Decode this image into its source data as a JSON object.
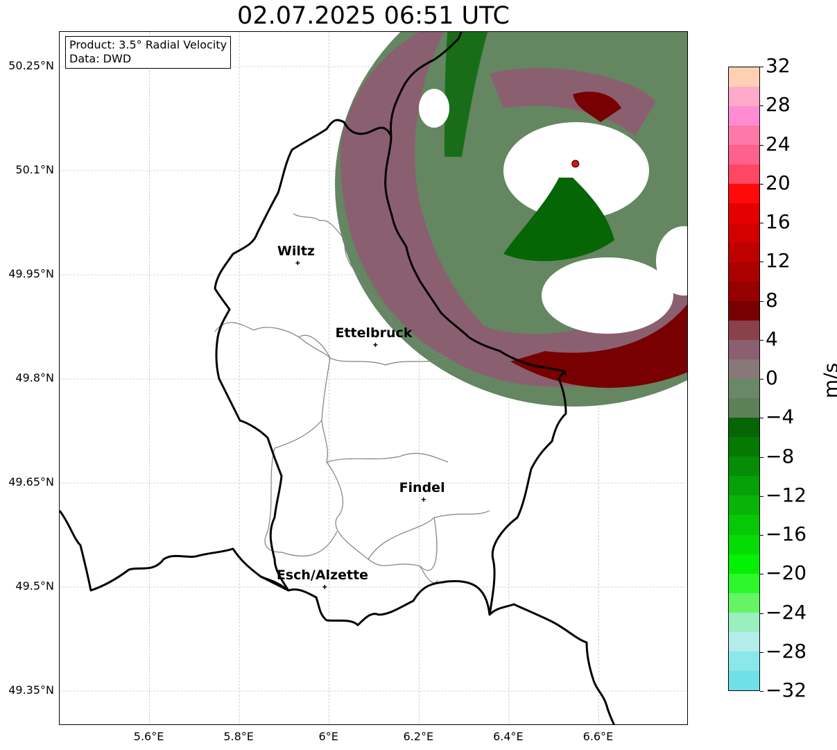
{
  "title": "02.07.2025 06:51 UTC",
  "infobox": {
    "product": "Product: 3.5° Radial Velocity",
    "source": "Data: DWD"
  },
  "axes": {
    "lat_labels": [
      "50.25°N",
      "50.1°N",
      "49.95°N",
      "49.8°N",
      "49.65°N",
      "49.5°N",
      "49.35°N"
    ],
    "lon_labels": [
      "5.6°E",
      "5.8°E",
      "6°E",
      "6.2°E",
      "6.4°E",
      "6.6°E"
    ],
    "lat_values": [
      50.25,
      50.1,
      49.95,
      49.8,
      49.65,
      49.5,
      49.35
    ],
    "lon_values": [
      5.6,
      5.8,
      6.0,
      6.2,
      6.4,
      6.6
    ],
    "lon_range": [
      5.4,
      6.8
    ],
    "lat_range": [
      49.3,
      50.3
    ],
    "grid": true
  },
  "cities": [
    {
      "name": "Wiltz",
      "lon": 5.93,
      "lat": 49.967
    },
    {
      "name": "Ettelbruck",
      "lon": 6.103,
      "lat": 49.849
    },
    {
      "name": "Findel",
      "lon": 6.21,
      "lat": 49.626
    },
    {
      "name": "Esch/Alzette",
      "lon": 5.99,
      "lat": 49.5
    }
  ],
  "radar_site": {
    "lon": 6.548,
    "lat": 50.11,
    "color": "#e01010"
  },
  "colorbar": {
    "unit": "m/s",
    "min": -32,
    "max": 32,
    "tick_labels": [
      "32",
      "28",
      "24",
      "20",
      "16",
      "12",
      "8",
      "4",
      "0",
      "−4",
      "−8",
      "−12",
      "−16",
      "−20",
      "−24",
      "−28",
      "−32"
    ],
    "colors_top_to_bottom": [
      "#ffd0b4",
      "#ffaac8",
      "#ff8cd2",
      "#ff78a8",
      "#ff608c",
      "#ff4664",
      "#ff0a0a",
      "#e40000",
      "#d20000",
      "#be0000",
      "#aa0000",
      "#960000",
      "#780000",
      "#8a424a",
      "#8a6070",
      "#887878",
      "#6a8868",
      "#5c8058",
      "#066606",
      "#047a04",
      "#068c06",
      "#08a008",
      "#08b408",
      "#06c806",
      "#04dc04",
      "#04f004",
      "#2cf82c",
      "#64f464",
      "#98f0c0",
      "#b4ecec",
      "#8ae8e8",
      "#70e0e8"
    ]
  },
  "velocity_colors": {
    "inbound_strong": "#066606",
    "inbound": "#5c8058",
    "near_zero_green": "#6a8868",
    "near_zero_red": "#8a6070",
    "outbound": "#8a424a",
    "outbound_strong": "#780000"
  }
}
